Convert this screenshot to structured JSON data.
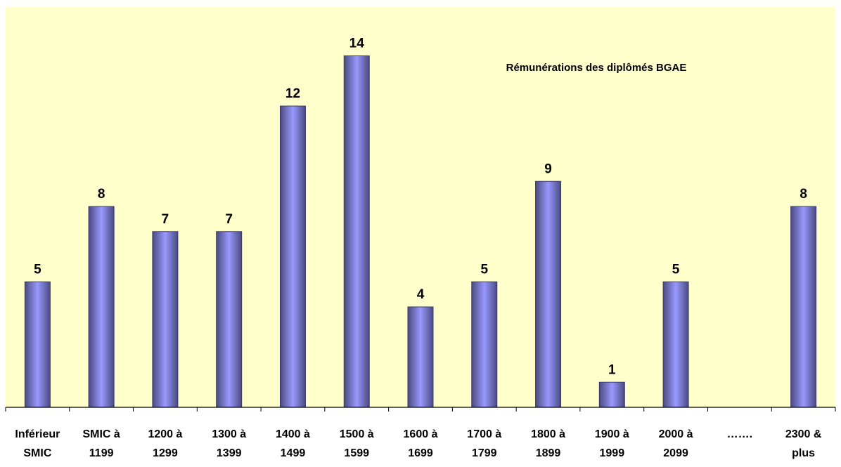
{
  "chart_data": {
    "type": "bar",
    "title": "Rémunérations des diplômés  BGAE",
    "categories": [
      [
        "Inférieur",
        "SMIC"
      ],
      [
        "SMIC à",
        "1199"
      ],
      [
        "1200 à",
        "1299"
      ],
      [
        "1300 à",
        "1399"
      ],
      [
        "1400 à",
        "1499"
      ],
      [
        "1500 à",
        "1599"
      ],
      [
        "1600 à",
        "1699"
      ],
      [
        "1700 à",
        "1799"
      ],
      [
        "1800 à",
        "1899"
      ],
      [
        "1900 à",
        "1999"
      ],
      [
        "2000 à",
        "2099"
      ],
      [
        "…….",
        ""
      ],
      [
        "2300 &",
        "plus"
      ]
    ],
    "values": [
      5,
      8,
      7,
      7,
      12,
      14,
      4,
      5,
      9,
      1,
      5,
      null,
      8
    ],
    "data_labels": [
      "5",
      "8",
      "7",
      "7",
      "12",
      "14",
      "4",
      "5",
      "9",
      "1",
      "5",
      "",
      "8"
    ],
    "ylim": [
      0,
      14
    ],
    "grid": false,
    "legend": "none",
    "colors": {
      "plot_background": "#FFFFCC",
      "bar_edge": "#3A3A70",
      "bar_dark": "#4A4A80",
      "bar_light": "#9999FF",
      "axis": "#000000",
      "text": "#000000"
    }
  }
}
